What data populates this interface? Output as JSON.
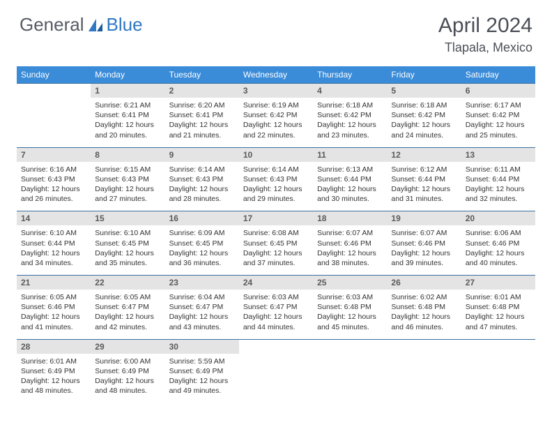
{
  "brand": {
    "name_part1": "General",
    "name_part2": "Blue"
  },
  "title": "April 2024",
  "location": "Tlapala, Mexico",
  "colors": {
    "header_bg": "#3a8bd8",
    "header_text": "#ffffff",
    "daynum_bg": "#e4e4e4",
    "daynum_text": "#5a5a5a",
    "body_text": "#333333",
    "border": "#3a6fa3",
    "brand_gray": "#555b64",
    "brand_blue": "#2f78c3"
  },
  "day_labels": [
    "Sunday",
    "Monday",
    "Tuesday",
    "Wednesday",
    "Thursday",
    "Friday",
    "Saturday"
  ],
  "weeks": [
    [
      null,
      {
        "n": "1",
        "sr": "Sunrise: 6:21 AM",
        "ss": "Sunset: 6:41 PM",
        "d1": "Daylight: 12 hours",
        "d2": "and 20 minutes."
      },
      {
        "n": "2",
        "sr": "Sunrise: 6:20 AM",
        "ss": "Sunset: 6:41 PM",
        "d1": "Daylight: 12 hours",
        "d2": "and 21 minutes."
      },
      {
        "n": "3",
        "sr": "Sunrise: 6:19 AM",
        "ss": "Sunset: 6:42 PM",
        "d1": "Daylight: 12 hours",
        "d2": "and 22 minutes."
      },
      {
        "n": "4",
        "sr": "Sunrise: 6:18 AM",
        "ss": "Sunset: 6:42 PM",
        "d1": "Daylight: 12 hours",
        "d2": "and 23 minutes."
      },
      {
        "n": "5",
        "sr": "Sunrise: 6:18 AM",
        "ss": "Sunset: 6:42 PM",
        "d1": "Daylight: 12 hours",
        "d2": "and 24 minutes."
      },
      {
        "n": "6",
        "sr": "Sunrise: 6:17 AM",
        "ss": "Sunset: 6:42 PM",
        "d1": "Daylight: 12 hours",
        "d2": "and 25 minutes."
      }
    ],
    [
      {
        "n": "7",
        "sr": "Sunrise: 6:16 AM",
        "ss": "Sunset: 6:43 PM",
        "d1": "Daylight: 12 hours",
        "d2": "and 26 minutes."
      },
      {
        "n": "8",
        "sr": "Sunrise: 6:15 AM",
        "ss": "Sunset: 6:43 PM",
        "d1": "Daylight: 12 hours",
        "d2": "and 27 minutes."
      },
      {
        "n": "9",
        "sr": "Sunrise: 6:14 AM",
        "ss": "Sunset: 6:43 PM",
        "d1": "Daylight: 12 hours",
        "d2": "and 28 minutes."
      },
      {
        "n": "10",
        "sr": "Sunrise: 6:14 AM",
        "ss": "Sunset: 6:43 PM",
        "d1": "Daylight: 12 hours",
        "d2": "and 29 minutes."
      },
      {
        "n": "11",
        "sr": "Sunrise: 6:13 AM",
        "ss": "Sunset: 6:44 PM",
        "d1": "Daylight: 12 hours",
        "d2": "and 30 minutes."
      },
      {
        "n": "12",
        "sr": "Sunrise: 6:12 AM",
        "ss": "Sunset: 6:44 PM",
        "d1": "Daylight: 12 hours",
        "d2": "and 31 minutes."
      },
      {
        "n": "13",
        "sr": "Sunrise: 6:11 AM",
        "ss": "Sunset: 6:44 PM",
        "d1": "Daylight: 12 hours",
        "d2": "and 32 minutes."
      }
    ],
    [
      {
        "n": "14",
        "sr": "Sunrise: 6:10 AM",
        "ss": "Sunset: 6:44 PM",
        "d1": "Daylight: 12 hours",
        "d2": "and 34 minutes."
      },
      {
        "n": "15",
        "sr": "Sunrise: 6:10 AM",
        "ss": "Sunset: 6:45 PM",
        "d1": "Daylight: 12 hours",
        "d2": "and 35 minutes."
      },
      {
        "n": "16",
        "sr": "Sunrise: 6:09 AM",
        "ss": "Sunset: 6:45 PM",
        "d1": "Daylight: 12 hours",
        "d2": "and 36 minutes."
      },
      {
        "n": "17",
        "sr": "Sunrise: 6:08 AM",
        "ss": "Sunset: 6:45 PM",
        "d1": "Daylight: 12 hours",
        "d2": "and 37 minutes."
      },
      {
        "n": "18",
        "sr": "Sunrise: 6:07 AM",
        "ss": "Sunset: 6:46 PM",
        "d1": "Daylight: 12 hours",
        "d2": "and 38 minutes."
      },
      {
        "n": "19",
        "sr": "Sunrise: 6:07 AM",
        "ss": "Sunset: 6:46 PM",
        "d1": "Daylight: 12 hours",
        "d2": "and 39 minutes."
      },
      {
        "n": "20",
        "sr": "Sunrise: 6:06 AM",
        "ss": "Sunset: 6:46 PM",
        "d1": "Daylight: 12 hours",
        "d2": "and 40 minutes."
      }
    ],
    [
      {
        "n": "21",
        "sr": "Sunrise: 6:05 AM",
        "ss": "Sunset: 6:46 PM",
        "d1": "Daylight: 12 hours",
        "d2": "and 41 minutes."
      },
      {
        "n": "22",
        "sr": "Sunrise: 6:05 AM",
        "ss": "Sunset: 6:47 PM",
        "d1": "Daylight: 12 hours",
        "d2": "and 42 minutes."
      },
      {
        "n": "23",
        "sr": "Sunrise: 6:04 AM",
        "ss": "Sunset: 6:47 PM",
        "d1": "Daylight: 12 hours",
        "d2": "and 43 minutes."
      },
      {
        "n": "24",
        "sr": "Sunrise: 6:03 AM",
        "ss": "Sunset: 6:47 PM",
        "d1": "Daylight: 12 hours",
        "d2": "and 44 minutes."
      },
      {
        "n": "25",
        "sr": "Sunrise: 6:03 AM",
        "ss": "Sunset: 6:48 PM",
        "d1": "Daylight: 12 hours",
        "d2": "and 45 minutes."
      },
      {
        "n": "26",
        "sr": "Sunrise: 6:02 AM",
        "ss": "Sunset: 6:48 PM",
        "d1": "Daylight: 12 hours",
        "d2": "and 46 minutes."
      },
      {
        "n": "27",
        "sr": "Sunrise: 6:01 AM",
        "ss": "Sunset: 6:48 PM",
        "d1": "Daylight: 12 hours",
        "d2": "and 47 minutes."
      }
    ],
    [
      {
        "n": "28",
        "sr": "Sunrise: 6:01 AM",
        "ss": "Sunset: 6:49 PM",
        "d1": "Daylight: 12 hours",
        "d2": "and 48 minutes."
      },
      {
        "n": "29",
        "sr": "Sunrise: 6:00 AM",
        "ss": "Sunset: 6:49 PM",
        "d1": "Daylight: 12 hours",
        "d2": "and 48 minutes."
      },
      {
        "n": "30",
        "sr": "Sunrise: 5:59 AM",
        "ss": "Sunset: 6:49 PM",
        "d1": "Daylight: 12 hours",
        "d2": "and 49 minutes."
      },
      null,
      null,
      null,
      null
    ]
  ]
}
